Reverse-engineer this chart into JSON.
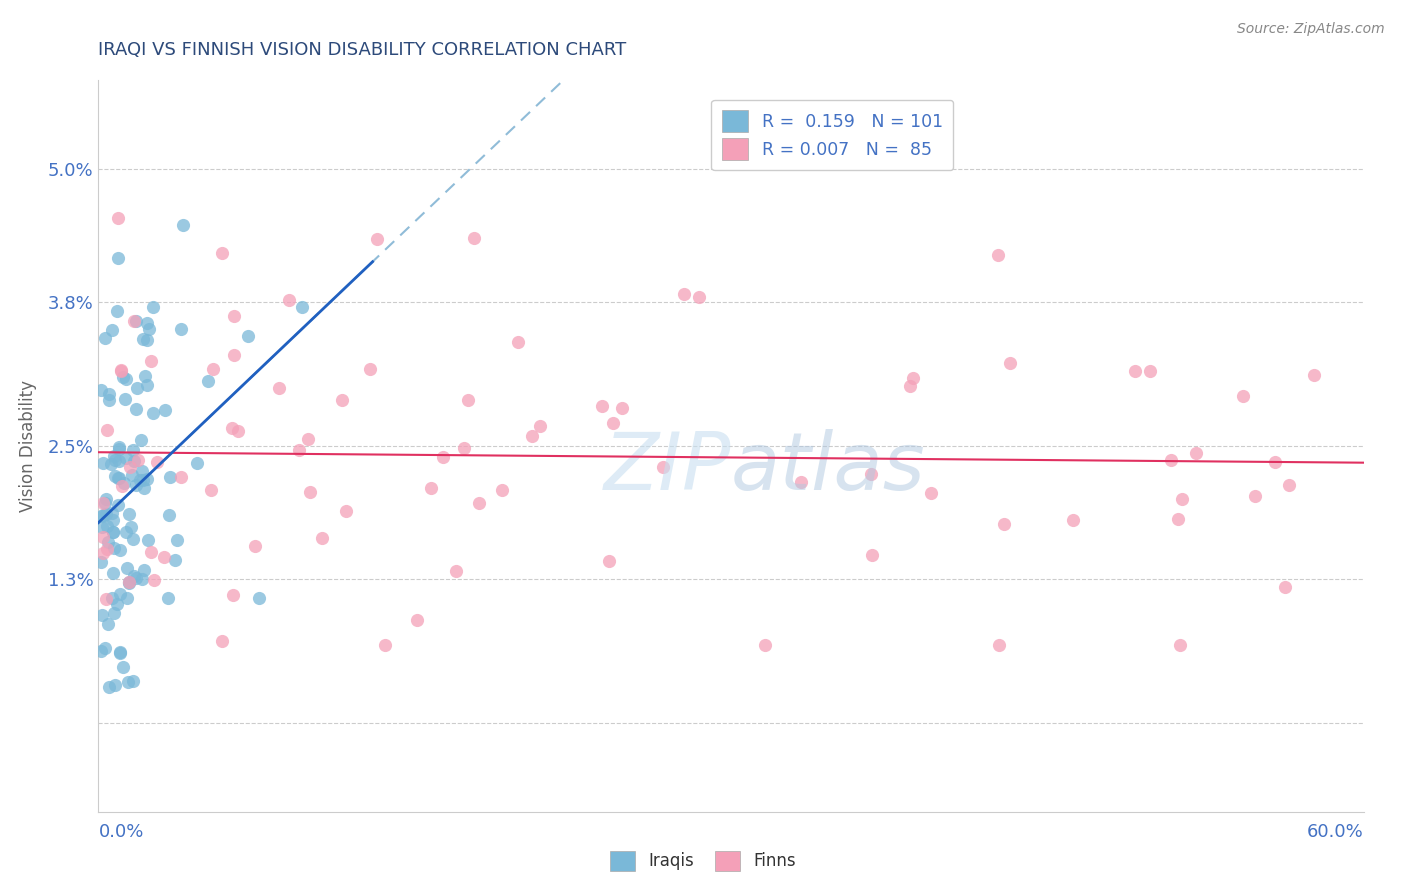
{
  "title": "IRAQI VS FINNISH VISION DISABILITY CORRELATION CHART",
  "source": "Source: ZipAtlas.com",
  "ylabel": "Vision Disability",
  "ytick_vals": [
    0.0,
    0.013,
    0.025,
    0.038,
    0.05
  ],
  "ytick_labels": [
    "",
    "1.3%",
    "2.5%",
    "3.8%",
    "5.0%"
  ],
  "xmin": 0.0,
  "xmax": 0.6,
  "ymin": -0.008,
  "ymax": 0.058,
  "iraqis_color": "#7ab8d8",
  "finns_color": "#f4a0b8",
  "iraqis_line_color": "#2060c0",
  "finns_line_color": "#e03060",
  "iraqis_dash_color": "#90bcd8",
  "title_color": "#2d4a7a",
  "axis_color": "#4472c4",
  "watermark_color": "#c8dff0",
  "legend_label_iraqis": "R =  0.159   N = 101",
  "legend_label_finns": "R = 0.007   N =  85",
  "bottom_label_iraqis": "Iraqis",
  "bottom_label_finns": "Finns"
}
